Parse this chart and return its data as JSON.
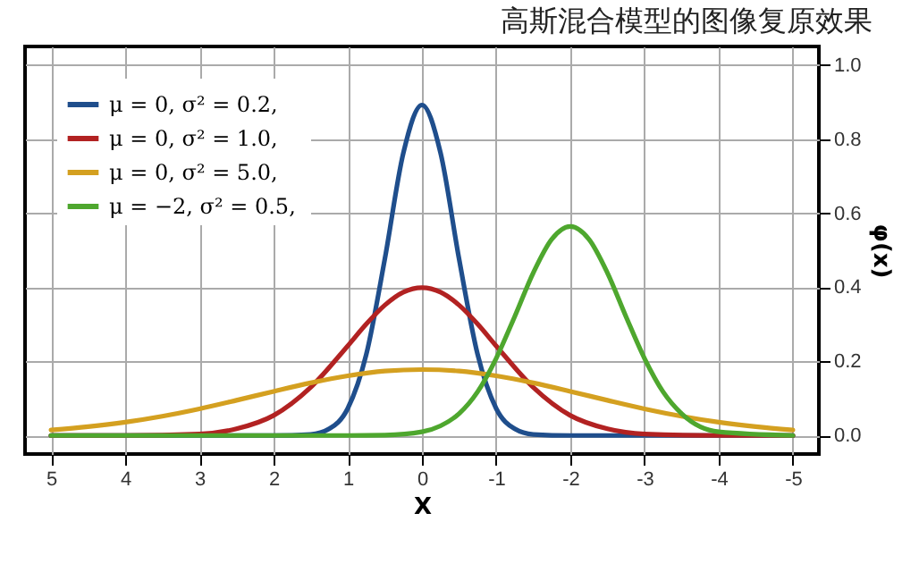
{
  "chart_data": {
    "type": "line",
    "xlabel": "X",
    "ylabel": "φ(x)",
    "xlim": [
      5.35,
      -5.35
    ],
    "xticks": [
      5,
      4,
      3,
      2,
      1,
      0,
      -1,
      -2,
      -3,
      -4,
      -5
    ],
    "ylim": [
      -0.05,
      1.05
    ],
    "yticks": [
      {
        "value": 0,
        "label": "0.0"
      },
      0.2,
      0.4,
      0.6,
      0.8,
      {
        "value": 1,
        "label": "1.0"
      }
    ],
    "grid": true,
    "legend": "top left",
    "annotations": [
      "高斯混合模型的图像复原效果"
    ],
    "series": [
      {
        "name": "μ = 0,    σ² = 0.2,",
        "color": "#1f4e8c",
        "x": [
          -5,
          -2,
          -1.5,
          -1.25,
          -1,
          -0.75,
          -0.5,
          -0.25,
          0,
          0.25,
          0.5,
          0.75,
          1,
          1.25,
          1.5,
          2,
          5
        ],
        "values": [
          0,
          0,
          0.003,
          0.018,
          0.073,
          0.219,
          0.477,
          0.763,
          0.892,
          0.763,
          0.477,
          0.219,
          0.073,
          0.018,
          0.003,
          0,
          0
        ]
      },
      {
        "name": "μ = 0,    σ² = 1.0,",
        "color": "#b22222",
        "x": [
          -5,
          -4,
          -3,
          -2.5,
          -2,
          -1.5,
          -1,
          -0.75,
          -0.5,
          -0.25,
          0,
          0.25,
          0.5,
          0.75,
          1,
          1.5,
          2,
          2.5,
          3,
          4,
          5
        ],
        "values": [
          0,
          0,
          0.004,
          0.018,
          0.054,
          0.13,
          0.242,
          0.301,
          0.352,
          0.387,
          0.399,
          0.387,
          0.352,
          0.301,
          0.242,
          0.13,
          0.054,
          0.018,
          0.004,
          0,
          0
        ]
      },
      {
        "name": "μ = 0,    σ² = 5.0,",
        "color": "#d4a020",
        "x": [
          -5,
          -4.5,
          -4,
          -3.5,
          -3,
          -2.5,
          -2,
          -1.5,
          -1,
          -0.5,
          0,
          0.5,
          1,
          1.5,
          2,
          2.5,
          3,
          3.5,
          4,
          4.5,
          5
        ],
        "values": [
          0.015,
          0.024,
          0.036,
          0.052,
          0.072,
          0.095,
          0.119,
          0.142,
          0.161,
          0.174,
          0.178,
          0.174,
          0.161,
          0.142,
          0.119,
          0.095,
          0.072,
          0.052,
          0.036,
          0.024,
          0.015
        ]
      },
      {
        "name": "μ = −2,  σ² = 0.5,",
        "color": "#4ea72e",
        "x": [
          -5,
          -4,
          -3.5,
          -3.25,
          -3,
          -2.75,
          -2.5,
          -2.25,
          -2,
          -1.75,
          -1.5,
          -1.25,
          -1,
          -0.75,
          -0.5,
          -0.25,
          0,
          0.5,
          1,
          5
        ],
        "values": [
          0,
          0.01,
          0.059,
          0.118,
          0.208,
          0.321,
          0.439,
          0.53,
          0.564,
          0.53,
          0.439,
          0.321,
          0.208,
          0.118,
          0.059,
          0.026,
          0.01,
          0.001,
          0,
          0
        ]
      }
    ]
  }
}
